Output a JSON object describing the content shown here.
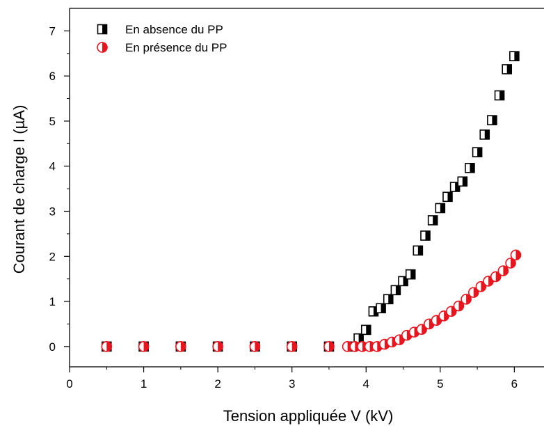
{
  "chart_data": {
    "type": "scatter",
    "title": "",
    "xlabel": "Tension appliquée V (kV)",
    "ylabel": "Courant de charge I (µA)",
    "xlim": [
      0,
      6.4
    ],
    "ylim": [
      -0.45,
      7.5
    ],
    "xticks": [
      0,
      1,
      2,
      3,
      4,
      5,
      6
    ],
    "yticks": [
      0,
      1,
      2,
      3,
      4,
      5,
      6,
      7
    ],
    "grid": false,
    "legend_position": "top-left",
    "series": [
      {
        "name": "En absence du PP",
        "marker": "half-filled-square",
        "color": "#000000",
        "points": [
          [
            0.5,
            0
          ],
          [
            1.0,
            0
          ],
          [
            1.5,
            0
          ],
          [
            2.0,
            0
          ],
          [
            2.5,
            0
          ],
          [
            3.0,
            0
          ],
          [
            3.5,
            0
          ],
          [
            3.8,
            0
          ],
          [
            3.9,
            0.18
          ],
          [
            4.0,
            0.37
          ],
          [
            4.1,
            0.78
          ],
          [
            4.2,
            0.85
          ],
          [
            4.3,
            1.05
          ],
          [
            4.4,
            1.25
          ],
          [
            4.5,
            1.45
          ],
          [
            4.6,
            1.6
          ],
          [
            4.7,
            2.13
          ],
          [
            4.8,
            2.46
          ],
          [
            4.9,
            2.8
          ],
          [
            5.0,
            3.07
          ],
          [
            5.1,
            3.32
          ],
          [
            5.2,
            3.54
          ],
          [
            5.3,
            3.66
          ],
          [
            5.4,
            3.96
          ],
          [
            5.5,
            4.31
          ],
          [
            5.6,
            4.7
          ],
          [
            5.7,
            5.02
          ],
          [
            5.8,
            5.57
          ],
          [
            5.9,
            6.15
          ],
          [
            6.0,
            6.44
          ]
        ]
      },
      {
        "name": "En présence du PP",
        "marker": "half-filled-circle",
        "color": "#e8141e",
        "points": [
          [
            0.5,
            0
          ],
          [
            1.0,
            0
          ],
          [
            1.5,
            0
          ],
          [
            2.0,
            0
          ],
          [
            2.5,
            0
          ],
          [
            3.0,
            0
          ],
          [
            3.5,
            0
          ],
          [
            3.75,
            0
          ],
          [
            3.85,
            0
          ],
          [
            3.95,
            0
          ],
          [
            4.05,
            0
          ],
          [
            4.15,
            0
          ],
          [
            4.25,
            0.05
          ],
          [
            4.35,
            0.1
          ],
          [
            4.45,
            0.15
          ],
          [
            4.55,
            0.25
          ],
          [
            4.65,
            0.32
          ],
          [
            4.75,
            0.38
          ],
          [
            4.85,
            0.5
          ],
          [
            4.95,
            0.58
          ],
          [
            5.05,
            0.68
          ],
          [
            5.15,
            0.78
          ],
          [
            5.25,
            0.9
          ],
          [
            5.35,
            1.05
          ],
          [
            5.45,
            1.2
          ],
          [
            5.55,
            1.33
          ],
          [
            5.65,
            1.45
          ],
          [
            5.75,
            1.55
          ],
          [
            5.85,
            1.68
          ],
          [
            5.95,
            1.85
          ],
          [
            6.02,
            2.03
          ]
        ]
      }
    ]
  }
}
